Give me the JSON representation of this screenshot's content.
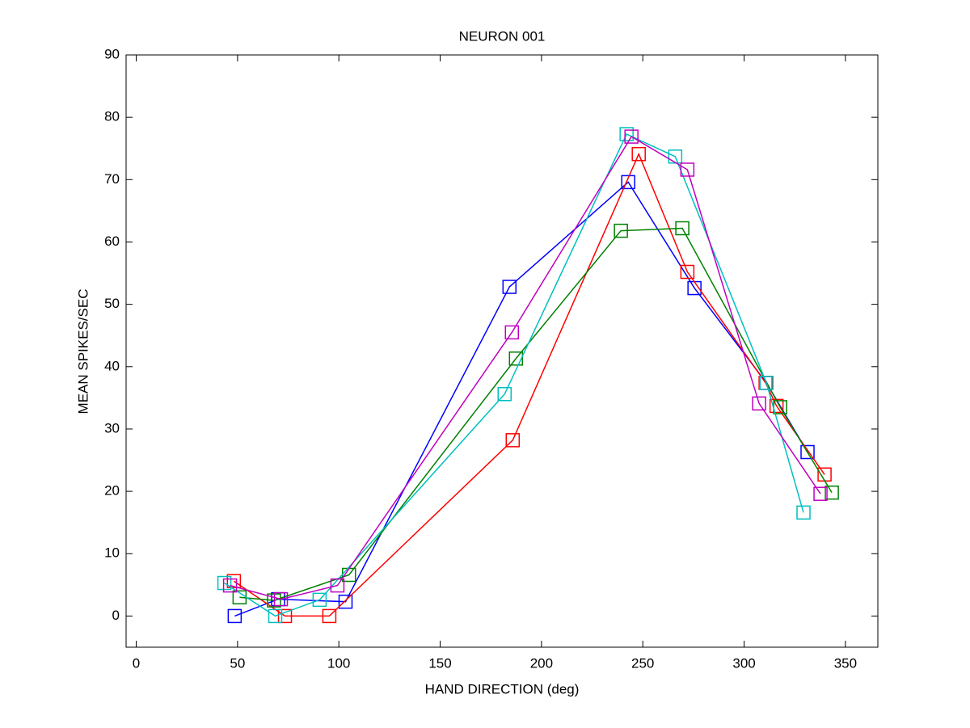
{
  "chart_data": {
    "type": "line",
    "title": "NEURON 001",
    "x_label": "HAND DIRECTION (deg)",
    "y_label": "MEAN SPIKES/SEC",
    "xlim": [
      -5,
      366
    ],
    "ylim": [
      -5,
      90
    ],
    "xticks": [
      0,
      50,
      100,
      150,
      200,
      250,
      300,
      350
    ],
    "yticks": [
      0,
      10,
      20,
      30,
      40,
      50,
      60,
      70,
      80,
      90
    ],
    "marker": "square",
    "series": [
      {
        "color": "#0000ff",
        "x": [
          48.6,
          70,
          103.3,
          184.2,
          242.8,
          275.5,
          311,
          331.3
        ],
        "values": [
          0,
          2.7,
          2.3,
          52.8,
          69.6,
          52.6,
          37.4,
          26.3
        ]
      },
      {
        "color": "#ff0000",
        "x": [
          48.2,
          73.4,
          95.3,
          185.8,
          248,
          272,
          310.6,
          316,
          339.7
        ],
        "values": [
          5.6,
          0,
          0,
          28.2,
          74.1,
          55.2,
          37.4,
          33.7,
          22.7
        ]
      },
      {
        "color": "#008000",
        "x": [
          51,
          68,
          105,
          187.4,
          239.2,
          269.5,
          317.8,
          343.3
        ],
        "values": [
          3,
          2.5,
          6.6,
          41.3,
          61.8,
          62.2,
          33.5,
          19.8
        ]
      },
      {
        "color": "#00bfbf",
        "x": [
          43.5,
          68.6,
          90.5,
          181.8,
          242,
          266,
          311,
          329.3
        ],
        "values": [
          5.3,
          0,
          2.6,
          35.6,
          77.3,
          73.7,
          37.4,
          16.6
        ]
      },
      {
        "color": "#bf00bf",
        "x": [
          46.3,
          71.4,
          99.3,
          185.4,
          244.4,
          272,
          307.4,
          337.7
        ],
        "values": [
          4.9,
          2.7,
          4.9,
          45.5,
          76.9,
          71.6,
          34.1,
          19.6
        ]
      }
    ]
  }
}
